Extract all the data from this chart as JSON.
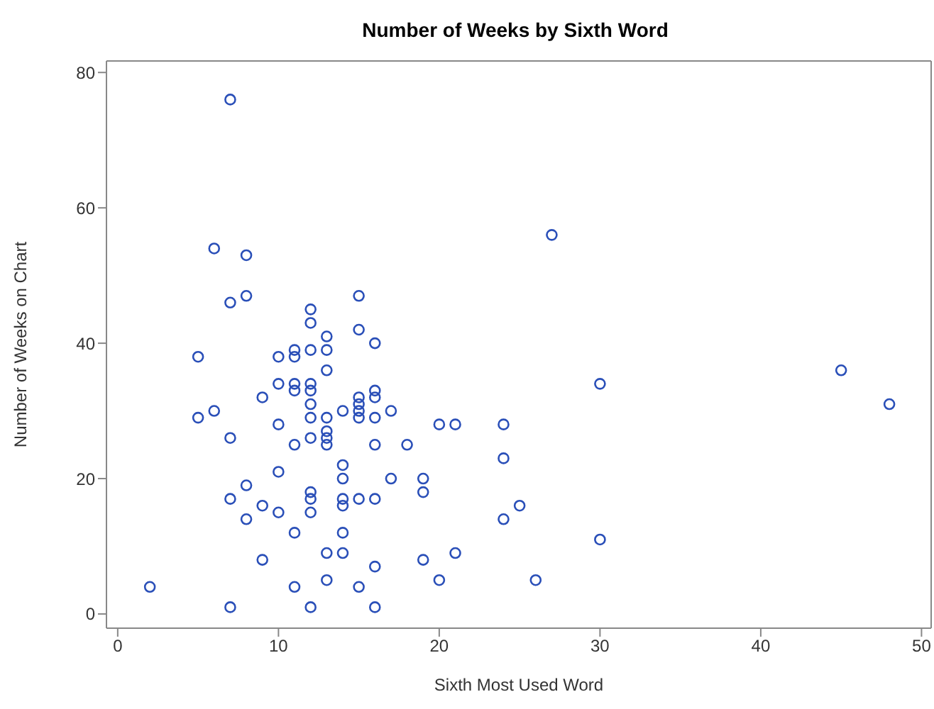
{
  "chart_data": {
    "type": "scatter",
    "title": "Number of Weeks by Sixth Word",
    "xlabel": "Sixth Most Used Word",
    "ylabel": "Number of Weeks on Chart",
    "x": [
      7,
      6,
      8,
      8,
      7,
      27,
      45,
      48,
      30,
      30,
      12,
      12,
      15,
      15,
      13,
      16,
      10,
      11,
      11,
      12,
      13,
      13,
      5,
      9,
      10,
      11,
      11,
      12,
      12,
      14,
      15,
      15,
      15,
      15,
      16,
      16,
      17,
      16,
      12,
      12,
      13,
      5,
      6,
      7,
      10,
      12,
      13,
      13,
      13,
      11,
      16,
      18,
      20,
      21,
      24,
      10,
      14,
      14,
      14,
      14,
      17,
      19,
      19,
      24,
      24,
      25,
      7,
      8,
      8,
      9,
      10,
      12,
      12,
      12,
      15,
      16,
      11,
      14,
      13,
      14,
      9,
      16,
      19,
      21,
      20,
      26,
      13,
      11,
      15,
      2,
      7,
      12,
      16
    ],
    "series": [
      {
        "color": "#2a4fb8",
        "values": [
          76,
          54,
          53,
          47,
          46,
          56,
          36,
          31,
          34,
          11,
          45,
          43,
          47,
          42,
          41,
          40,
          38,
          39,
          38,
          39,
          39,
          36,
          38,
          32,
          34,
          34,
          33,
          34,
          33,
          30,
          32,
          31,
          30,
          29,
          33,
          32,
          30,
          29,
          29,
          31,
          29,
          29,
          30,
          26,
          28,
          26,
          27,
          26,
          25,
          25,
          25,
          25,
          28,
          28,
          28,
          21,
          22,
          20,
          17,
          16,
          20,
          20,
          18,
          23,
          14,
          16,
          17,
          19,
          14,
          16,
          15,
          18,
          17,
          15,
          17,
          17,
          12,
          12,
          9,
          9,
          8,
          7,
          8,
          9,
          5,
          5,
          5,
          4,
          4,
          4,
          1,
          1,
          1
        ]
      }
    ],
    "xlim": [
      -0.7,
      50.6
    ],
    "ylim": [
      -2.1,
      81.7
    ],
    "xticks": [
      0,
      10,
      20,
      30,
      40,
      50
    ],
    "yticks": [
      0,
      20,
      40,
      60,
      80
    ],
    "grid": false,
    "legend": false,
    "marker": "circle"
  }
}
